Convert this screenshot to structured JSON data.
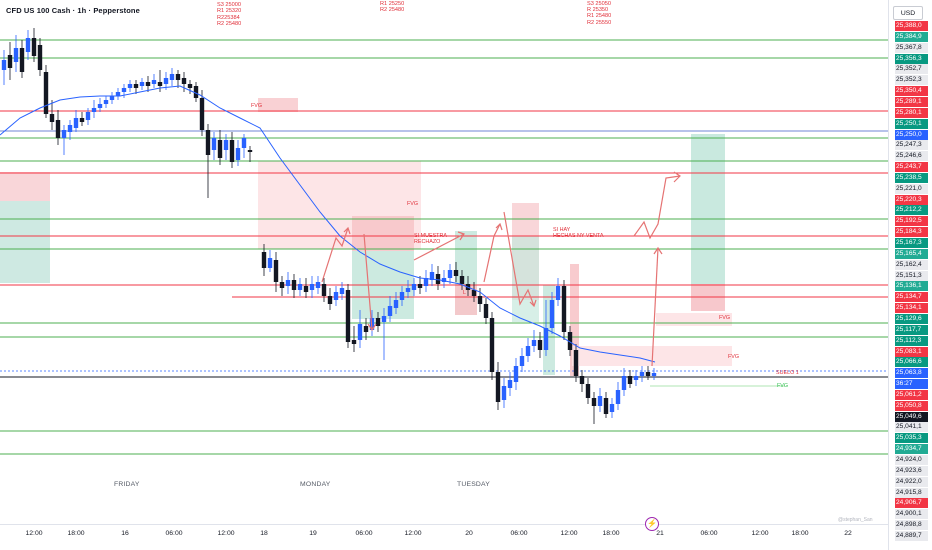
{
  "title": "CFD US 100 Cash · 1h · Pepperstone",
  "currency": "USD",
  "notes": {
    "left": "S2 25083\nS3 25000\nR1 25320\nR225384\nR2 25480",
    "middle": "R1 25250\nR2 25480",
    "right": "S3 25050\nR 25350\nR1 25480\nR2 25550"
  },
  "annotations": {
    "fvg": "FVG",
    "si_muestra": "SI MUESTRA\nRECHAZO",
    "si_hay": "SI HAY\nHECHAS NY VENTA",
    "suelo": "SUELO 1",
    "l": "L"
  },
  "day_labels": [
    "FRIDAY",
    "MONDAY",
    "TUESDAY"
  ],
  "time_ticks": [
    "12:00",
    "18:00",
    "16",
    "06:00",
    "12:00",
    "18",
    "19",
    "06:00",
    "12:00",
    "20",
    "06:00",
    "12:00",
    "18:00",
    "21",
    "06:00",
    "12:00",
    "18:00",
    "22"
  ],
  "price_labels": [
    {
      "text": "25,388,0",
      "style": "red"
    },
    {
      "text": "25,384,9",
      "style": "green"
    },
    {
      "text": "25,367,8",
      "style": "gray"
    },
    {
      "text": "25,356,3",
      "style": "teal"
    },
    {
      "text": "25,352,7",
      "style": "gray"
    },
    {
      "text": "25,352,3",
      "style": "gray"
    },
    {
      "text": "25,350,4",
      "style": "red"
    },
    {
      "text": "25,289,1",
      "style": "red"
    },
    {
      "text": "25,280,1",
      "style": "red"
    },
    {
      "text": "25,250,1",
      "style": "teal"
    },
    {
      "text": "25,250,0",
      "style": "blue"
    },
    {
      "text": "25,247,3",
      "style": "gray"
    },
    {
      "text": "25,246,6",
      "style": "gray"
    },
    {
      "text": "25,243,7",
      "style": "red"
    },
    {
      "text": "25,238,5",
      "style": "teal"
    },
    {
      "text": "25,221,0",
      "style": "gray"
    },
    {
      "text": "25,220,3",
      "style": "red"
    },
    {
      "text": "25,212,2",
      "style": "teal"
    },
    {
      "text": "25,192,5",
      "style": "red"
    },
    {
      "text": "25,184,3",
      "style": "red"
    },
    {
      "text": "25,167,3",
      "style": "teal"
    },
    {
      "text": "25,165,4",
      "style": "green"
    },
    {
      "text": "25,162,4",
      "style": "gray"
    },
    {
      "text": "25,151,3",
      "style": "gray"
    },
    {
      "text": "25,136,1",
      "style": "green"
    },
    {
      "text": "25,134,7",
      "style": "red"
    },
    {
      "text": "25,134,1",
      "style": "red"
    },
    {
      "text": "25,129,6",
      "style": "teal"
    },
    {
      "text": "25,117,7",
      "style": "teal"
    },
    {
      "text": "25,112,3",
      "style": "teal"
    },
    {
      "text": "25,083,1",
      "style": "red"
    },
    {
      "text": "25,066,6",
      "style": "teal"
    },
    {
      "text": "25,063,8",
      "style": "blue"
    },
    {
      "text": "36:27",
      "style": "blue"
    },
    {
      "text": "25,061,2",
      "style": "red"
    },
    {
      "text": "25,050,8",
      "style": "red"
    },
    {
      "text": "25,049,6",
      "style": "black"
    },
    {
      "text": "25,041,1",
      "style": "gray"
    },
    {
      "text": "25,035,3",
      "style": "teal"
    },
    {
      "text": "24,934,7",
      "style": "green"
    },
    {
      "text": "24,924,0",
      "style": "gray"
    },
    {
      "text": "24,923,6",
      "style": "gray"
    },
    {
      "text": "24,922,0",
      "style": "gray"
    },
    {
      "text": "24,915,8",
      "style": "gray"
    },
    {
      "text": "24,906,7",
      "style": "red"
    },
    {
      "text": "24,900,1",
      "style": "gray"
    },
    {
      "text": "24,898,8",
      "style": "gray"
    },
    {
      "text": "24,889,7",
      "style": "gray"
    }
  ],
  "watermark": "@stephan_San",
  "colors": {
    "up": "#2962ff",
    "down": "#131722",
    "ma": "#2962ff",
    "support_line": "#4caf50",
    "resistance_line": "#f23645",
    "fvg_red": "#f7c5c9",
    "fvg_green": "#b9e0d6"
  },
  "icons": {
    "event": "lightning-icon"
  }
}
